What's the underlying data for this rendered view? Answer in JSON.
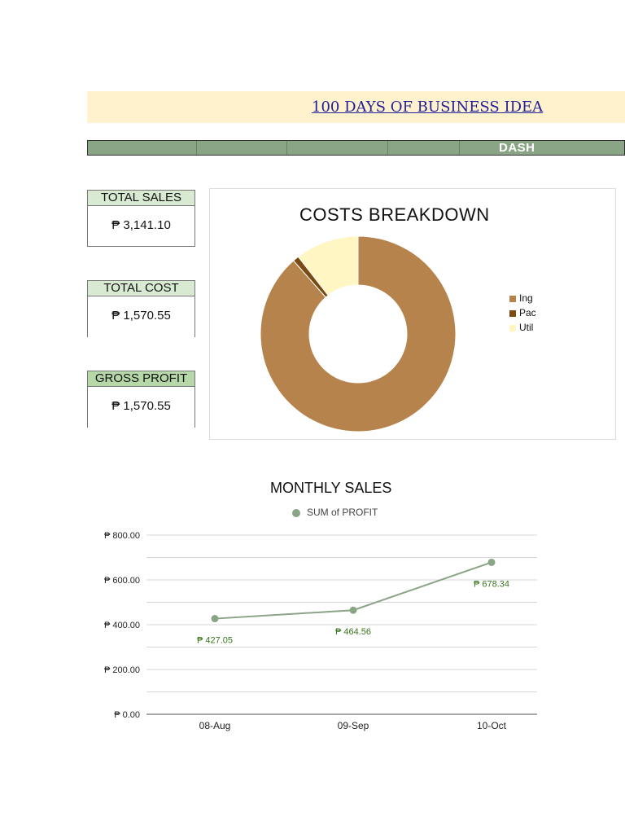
{
  "title": "100 DAYS OF BUSINESS IDEA",
  "header_label": "DASH",
  "kpis": {
    "total_sales": {
      "label": "TOTAL SALES",
      "value": "₱ 3,141.10"
    },
    "total_cost": {
      "label": "TOTAL COST",
      "value": "₱ 1,570.55"
    },
    "gross_profit": {
      "label": "GROSS PROFIT",
      "value": "₱ 1,570.55"
    }
  },
  "colors": {
    "title_band": "#fff2cc",
    "header_bar": "#8aa585",
    "kpi_label": "#d9ead3",
    "kpi_label_dark": "#b6d7a8",
    "series": "#8aa585",
    "data_label": "#38761d"
  },
  "chart_data": [
    {
      "type": "pie",
      "title": "COSTS BREAKDOWN",
      "hole": true,
      "categories": [
        "Ing",
        "Pac",
        "Util"
      ],
      "values": [
        88.5,
        1.0,
        10.5
      ],
      "colors": [
        "#b5834b",
        "#7a4a12",
        "#fff6c4"
      ],
      "legend": "right"
    },
    {
      "type": "line",
      "title": "MONTHLY SALES",
      "categories": [
        "08-Aug",
        "09-Sep",
        "10-Oct"
      ],
      "series": [
        {
          "name": "SUM of PROFIT",
          "values": [
            427.05,
            464.56,
            678.34
          ]
        }
      ],
      "data_labels": [
        "₱ 427.05",
        "₱ 464.56",
        "₱ 678.34"
      ],
      "yticks": [
        "₱ 0.00",
        "₱ 200.00",
        "₱ 400.00",
        "₱ 600.00",
        "₱ 800.00"
      ],
      "ylim": [
        0,
        800
      ],
      "legend": "top",
      "grid": true
    }
  ]
}
